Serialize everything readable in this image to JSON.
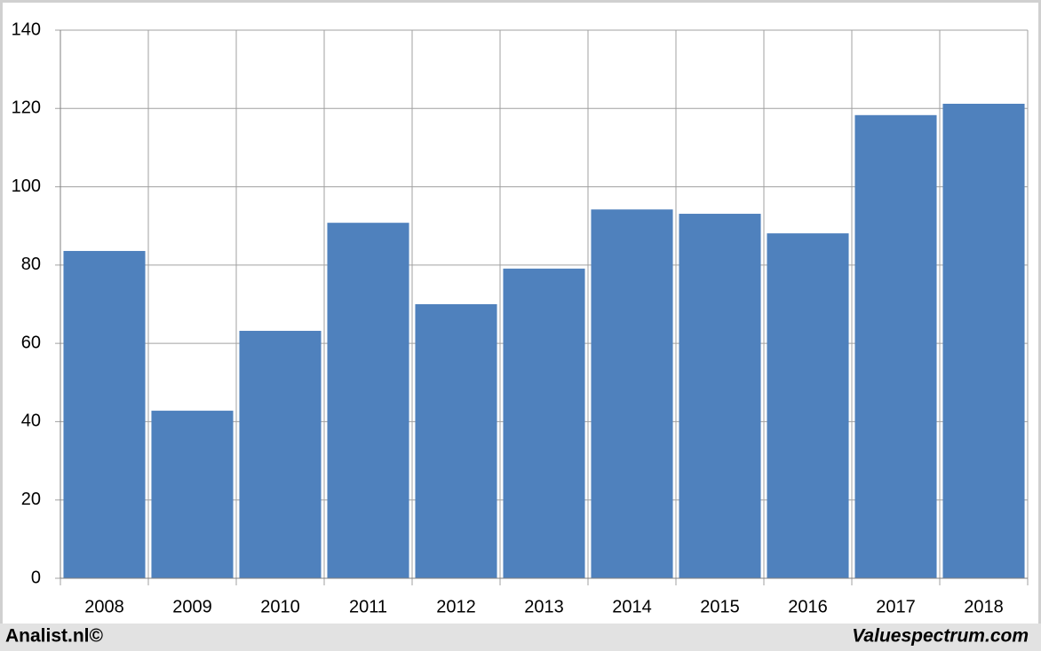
{
  "chart_data": {
    "type": "bar",
    "categories": [
      "2008",
      "2009",
      "2010",
      "2011",
      "2012",
      "2013",
      "2014",
      "2015",
      "2016",
      "2017",
      "2018"
    ],
    "values": [
      83.6,
      42.8,
      63.2,
      90.8,
      70.0,
      79.1,
      94.2,
      93.1,
      88.1,
      118.3,
      121.2
    ],
    "color": "#4f81bd",
    "ylim": [
      0,
      140
    ],
    "yticks": [
      0,
      20,
      40,
      60,
      80,
      100,
      120,
      140
    ],
    "grid": true
  },
  "footer": {
    "left": "Analist.nl©",
    "right": "Valuespectrum.com"
  }
}
